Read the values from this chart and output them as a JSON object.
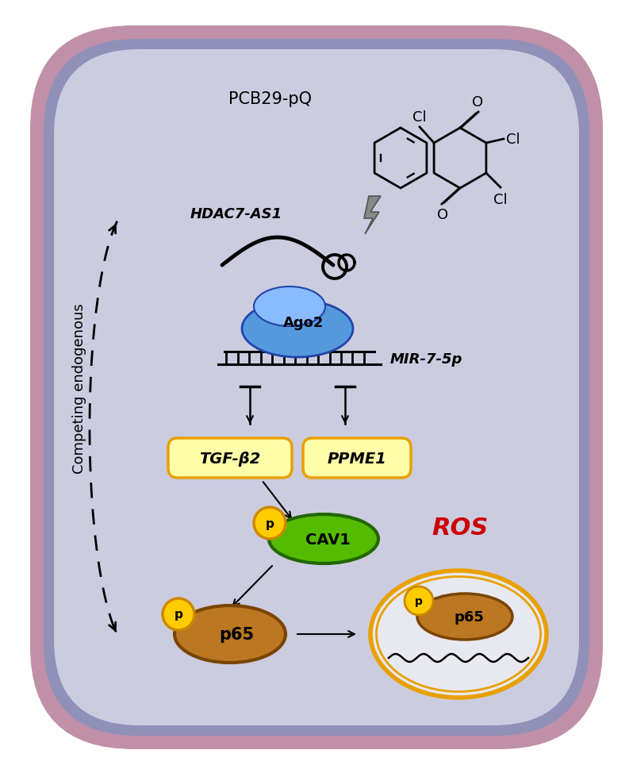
{
  "fig_width": 7.98,
  "fig_height": 9.7,
  "bg_outer": "#ffffff",
  "cell_bg": "#cccce0",
  "cell_border_outer": "#c090a8",
  "cell_border_inner": "#9090b8",
  "pcb_label": "PCB29-pQ",
  "competing_label": "Competing endogenous",
  "hdac_label": "HDAC7-AS1",
  "ago2_label": "Ago2",
  "mir_label": "MIR-7-5p",
  "tgf_label": "TGF-β2",
  "ppme_label": "PPME1",
  "cav1_label": "CAV1",
  "p_label": "p",
  "p65_label": "p65",
  "ros_label": "ROS",
  "tgf_color": "#ffffaa",
  "tgf_border": "#e8a000",
  "ppme_color": "#ffffaa",
  "ppme_border": "#e8a000",
  "cav1_color": "#55bb00",
  "cav1_border": "#226600",
  "p_circle_color": "#ffcc00",
  "p_circle_border": "#cc8800",
  "p65_color": "#bb7722",
  "p65_border": "#7a4400",
  "ago2_body": "#5599dd",
  "ago2_top": "#88bbff",
  "ago2_edge": "#2244aa",
  "nucleus_border": "#e8a000",
  "ros_color": "#cc0000",
  "lightning_color": "#888888",
  "lightning_edge": "#555555"
}
